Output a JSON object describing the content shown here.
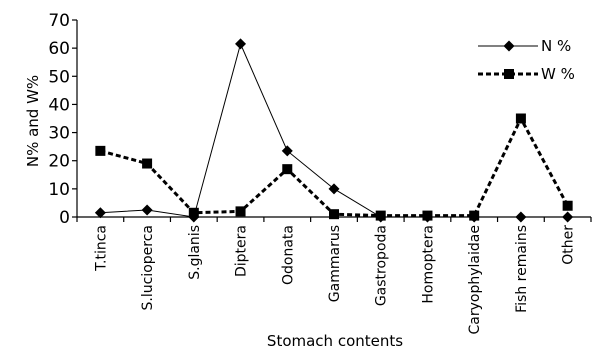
{
  "chart_data": {
    "type": "line",
    "title": "",
    "xlabel": "Stomach contents",
    "ylabel": "N% and W%",
    "ylim": [
      0,
      70
    ],
    "yticks": [
      0,
      10,
      20,
      30,
      40,
      50,
      60,
      70
    ],
    "categories": [
      "T.tinca",
      "S.lucioperca",
      "S.glanis",
      "Diptera",
      "Odonata",
      "Gammarus",
      "Gastropoda",
      "Homoptera",
      "Caryophylaidae",
      "Fish remains",
      "Other"
    ],
    "series": [
      {
        "name": "N %",
        "values": [
          1.5,
          2.5,
          0,
          61.5,
          23.5,
          10,
          0,
          0,
          0,
          0,
          0
        ],
        "color": "#000000",
        "line_style": "solid",
        "marker": "diamond"
      },
      {
        "name": "W %",
        "values": [
          23.5,
          19,
          1.5,
          2,
          17,
          1,
          0.5,
          0.5,
          0.5,
          35,
          4
        ],
        "color": "#000000",
        "line_style": "dashed",
        "marker": "square"
      }
    ],
    "legend_position": "top-right",
    "grid": false
  }
}
